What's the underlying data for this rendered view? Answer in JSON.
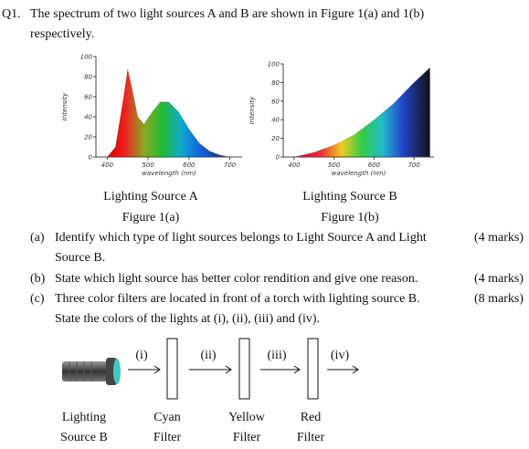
{
  "header": {
    "number": "Q1.",
    "lines": [
      "The spectrum of two light sources A and B are shown in Figure 1(a) and 1(b)",
      "respectively."
    ]
  },
  "figures": [
    {
      "type": "area",
      "ylabel": "Intensity",
      "xlabel": "wavelength (nm)",
      "xlim": [
        350,
        730
      ],
      "ylim": [
        0,
        100
      ],
      "yticks": [
        0,
        20,
        40,
        60,
        80,
        100
      ],
      "xticks": [
        400,
        500,
        600,
        700
      ],
      "x": [
        400,
        420,
        440,
        450,
        460,
        475,
        490,
        510,
        530,
        550,
        575,
        600,
        625,
        650,
        675,
        700
      ],
      "values": [
        0,
        10,
        60,
        88,
        70,
        40,
        33,
        45,
        55,
        55,
        45,
        28,
        14,
        6,
        2,
        0
      ],
      "name": "Lighting Source A",
      "caption": "Figure 1(a)"
    },
    {
      "type": "area",
      "ylabel": "Intensity",
      "xlabel": "wavelength (nm)",
      "xlim": [
        350,
        750
      ],
      "ylim": [
        0,
        100
      ],
      "yticks": [
        0,
        20,
        40,
        60,
        80,
        100
      ],
      "xticks": [
        400,
        500,
        600,
        700
      ],
      "x": [
        400,
        450,
        500,
        550,
        600,
        650,
        700,
        740
      ],
      "values": [
        0,
        5,
        13,
        24,
        40,
        58,
        80,
        96
      ],
      "name": "Lighting Source B",
      "caption": "Figure 1(b)"
    }
  ],
  "questions": [
    {
      "label": "(a)",
      "lines": [
        "Identify which type of light sources belongs to Light Source A and Light",
        "Source B."
      ],
      "marks": "(4 marks)"
    },
    {
      "label": "(b)",
      "lines": [
        "State which light source has better color rendition and give one reason."
      ],
      "marks": "(4 marks)"
    },
    {
      "label": "(c)",
      "lines": [
        "Three color filters are located in front of a torch with lighting source B.",
        "State the colors of the lights at (i), (ii), (iii) and (iv)."
      ],
      "marks": "(8 marks)"
    }
  ],
  "diagram": {
    "points": [
      "(i)",
      "(ii)",
      "(iii)",
      "(iv)"
    ],
    "labels": [
      [
        "Lighting",
        "Source B"
      ],
      [
        "Cyan",
        "Filter"
      ],
      [
        "Yellow",
        "Filter"
      ],
      [
        "Red",
        "Filter"
      ]
    ]
  }
}
